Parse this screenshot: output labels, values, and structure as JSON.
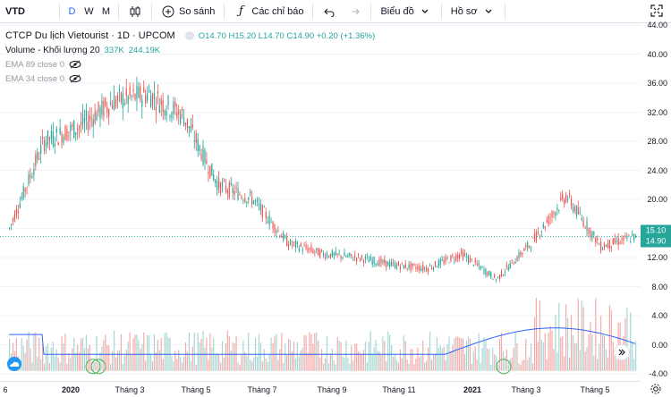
{
  "toolbar": {
    "symbol": "VTD",
    "intervals": [
      "D",
      "W",
      "M"
    ],
    "active_interval": "D",
    "compare_label": "So sánh",
    "indicators_label": "Các chỉ báo",
    "chart_type_label": "Biểu đồ",
    "profile_label": "Hồ sơ"
  },
  "legend": {
    "title": "CTCP Du lịch Vietourist · 1D · UPCOM",
    "ohlc": "O14.70 H15.20 L14.70 C14.90 +0.20 (+1.36%)",
    "volume_label": "Volume - Khối lượng 20",
    "volume_value1": "337K",
    "volume_value2": "244.19K",
    "ema89": "EMA 89 close 0",
    "ema34": "EMA 34 close 0"
  },
  "price_axis": {
    "ticks": [
      "44.00",
      "40.00",
      "36.00",
      "32.00",
      "28.00",
      "24.00",
      "20.00",
      "16.00",
      "12.00",
      "8.00",
      "4.00",
      "0.00",
      "-4.00"
    ],
    "last_price_tag": "15.10",
    "close_tag": "14.90"
  },
  "time_axis": {
    "ticks": [
      "6",
      "2020",
      "Tháng 3",
      "Tháng 5",
      "Tháng 7",
      "Tháng 9",
      "Tháng 11",
      "2021",
      "Tháng 3",
      "Tháng 5"
    ]
  },
  "colors": {
    "up": "#26a69a",
    "down": "#ef5350",
    "volume_ma": "#2962ff",
    "accent": "#2962ff",
    "last_price": "#26a69a"
  },
  "chart_data": {
    "type": "candlestick",
    "title": "CTCP Du lịch Vietourist · 1D · UPCOM",
    "ylim": [
      -4,
      44
    ],
    "x": [
      "2019-12",
      "2020-01",
      "2020-02",
      "2020-03",
      "2020-04",
      "2020-05",
      "2020-06",
      "2020-07",
      "2020-08",
      "2020-09",
      "2020-10",
      "2020-11",
      "2020-12",
      "2021-01",
      "2021-02",
      "2021-03",
      "2021-04",
      "2021-05",
      "2021-06"
    ],
    "close": [
      16.0,
      28.0,
      30.0,
      33.5,
      34.5,
      31.5,
      22.0,
      20.0,
      14.0,
      12.5,
      12.0,
      11.0,
      10.5,
      12.5,
      9.0,
      14.0,
      20.5,
      13.5,
      14.9
    ],
    "last": {
      "open": 14.7,
      "high": 15.2,
      "low": 14.7,
      "close": 14.9,
      "change": 0.2,
      "change_pct": 1.36
    }
  }
}
